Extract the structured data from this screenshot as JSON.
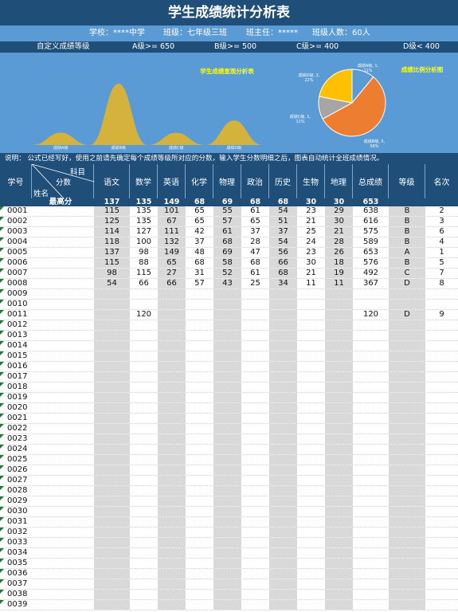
{
  "title": "学生成绩统计分析表",
  "info": {
    "school": "学校：****中学",
    "class": "班级：七年级三班",
    "teacher": "班主任：*****",
    "count": "班级人数：60人"
  },
  "grades": {
    "label": "自定义成绩等级",
    "a": "A级>= 650",
    "b": "B级>= 500",
    "c": "C级>= 400",
    "d": "D级< 400"
  },
  "chart_data": [
    {
      "type": "area",
      "title": "学生成绩直观分析表",
      "categories": [
        "成绩A级",
        "成绩B级",
        "成绩C级",
        "成绩D级"
      ],
      "values": [
        1,
        5,
        1,
        2
      ]
    },
    {
      "type": "pie",
      "title": "成绩比例分析图",
      "slices": [
        {
          "label": "成绩A级, 1, 11%",
          "value": 11,
          "color": "#5b9bd5"
        },
        {
          "label": "成绩B级, 5, 56%",
          "value": 56,
          "color": "#ed7d31"
        },
        {
          "label": "成绩C级, 1, 11%",
          "value": 11,
          "color": "#a5a5a5"
        },
        {
          "label": "成绩D级, 2, 22%",
          "value": 22,
          "color": "#ffc000"
        }
      ]
    }
  ],
  "note": "说明： 公式已经写好，使用之前请先确定每个成绩等级所对应的分数，输入学生分数明细之后，图表自动统计全班成绩情况。",
  "table": {
    "headers": {
      "id": "学号",
      "subject_label": "科目",
      "score_label": "分数",
      "name_label": "姓名",
      "chinese": "语文",
      "math": "数学",
      "english": "英语",
      "chemistry": "化学",
      "physics": "物理",
      "politics": "政治",
      "history": "历史",
      "biology": "生物",
      "geography": "地理",
      "total": "总成绩",
      "grade": "等级",
      "rank": "名次"
    },
    "max_row": {
      "label": "最高分",
      "values": [
        "137",
        "135",
        "149",
        "68",
        "69",
        "68",
        "68",
        "30",
        "30",
        "653"
      ]
    },
    "rows": [
      {
        "id": "0001",
        "scores": [
          "115",
          "135",
          "101",
          "65",
          "55",
          "61",
          "54",
          "23",
          "29"
        ],
        "total": "638",
        "grade": "B",
        "rank": "2"
      },
      {
        "id": "0002",
        "scores": [
          "125",
          "135",
          "67",
          "65",
          "57",
          "65",
          "51",
          "21",
          "30"
        ],
        "total": "616",
        "grade": "B",
        "rank": "3"
      },
      {
        "id": "0003",
        "scores": [
          "114",
          "127",
          "111",
          "42",
          "61",
          "37",
          "37",
          "25",
          "21"
        ],
        "total": "575",
        "grade": "B",
        "rank": "6"
      },
      {
        "id": "0004",
        "scores": [
          "118",
          "100",
          "132",
          "37",
          "68",
          "28",
          "54",
          "24",
          "28"
        ],
        "total": "589",
        "grade": "B",
        "rank": "4"
      },
      {
        "id": "0005",
        "scores": [
          "137",
          "98",
          "149",
          "48",
          "69",
          "47",
          "56",
          "23",
          "26"
        ],
        "total": "653",
        "grade": "A",
        "rank": "1"
      },
      {
        "id": "0006",
        "scores": [
          "115",
          "88",
          "65",
          "68",
          "58",
          "68",
          "66",
          "30",
          "18"
        ],
        "total": "576",
        "grade": "B",
        "rank": "5"
      },
      {
        "id": "0007",
        "scores": [
          "98",
          "115",
          "27",
          "31",
          "52",
          "61",
          "68",
          "21",
          "19"
        ],
        "total": "492",
        "grade": "C",
        "rank": "7"
      },
      {
        "id": "0008",
        "scores": [
          "54",
          "66",
          "66",
          "57",
          "43",
          "25",
          "34",
          "11",
          "11"
        ],
        "total": "367",
        "grade": "D",
        "rank": "8"
      },
      {
        "id": "0009",
        "scores": [
          "",
          "",
          "",
          "",
          "",
          "",
          "",
          "",
          ""
        ],
        "total": "",
        "grade": "",
        "rank": ""
      },
      {
        "id": "0010",
        "scores": [
          "",
          "",
          "",
          "",
          "",
          "",
          "",
          "",
          ""
        ],
        "total": "",
        "grade": "",
        "rank": ""
      },
      {
        "id": "0011",
        "scores": [
          "",
          "120",
          "",
          "",
          "",
          "",
          "",
          "",
          ""
        ],
        "total": "120",
        "grade": "D",
        "rank": "9"
      },
      {
        "id": "0012",
        "scores": [
          "",
          "",
          "",
          "",
          "",
          "",
          "",
          "",
          ""
        ],
        "total": "",
        "grade": "",
        "rank": ""
      },
      {
        "id": "0013",
        "scores": [
          "",
          "",
          "",
          "",
          "",
          "",
          "",
          "",
          ""
        ],
        "total": "",
        "grade": "",
        "rank": ""
      },
      {
        "id": "0014",
        "scores": [
          "",
          "",
          "",
          "",
          "",
          "",
          "",
          "",
          ""
        ],
        "total": "",
        "grade": "",
        "rank": ""
      },
      {
        "id": "0015",
        "scores": [
          "",
          "",
          "",
          "",
          "",
          "",
          "",
          "",
          ""
        ],
        "total": "",
        "grade": "",
        "rank": ""
      },
      {
        "id": "0016",
        "scores": [
          "",
          "",
          "",
          "",
          "",
          "",
          "",
          "",
          ""
        ],
        "total": "",
        "grade": "",
        "rank": ""
      },
      {
        "id": "0017",
        "scores": [
          "",
          "",
          "",
          "",
          "",
          "",
          "",
          "",
          ""
        ],
        "total": "",
        "grade": "",
        "rank": ""
      },
      {
        "id": "0018",
        "scores": [
          "",
          "",
          "",
          "",
          "",
          "",
          "",
          "",
          ""
        ],
        "total": "",
        "grade": "",
        "rank": ""
      },
      {
        "id": "0019",
        "scores": [
          "",
          "",
          "",
          "",
          "",
          "",
          "",
          "",
          ""
        ],
        "total": "",
        "grade": "",
        "rank": ""
      },
      {
        "id": "0020",
        "scores": [
          "",
          "",
          "",
          "",
          "",
          "",
          "",
          "",
          ""
        ],
        "total": "",
        "grade": "",
        "rank": ""
      },
      {
        "id": "0021",
        "scores": [
          "",
          "",
          "",
          "",
          "",
          "",
          "",
          "",
          ""
        ],
        "total": "",
        "grade": "",
        "rank": ""
      },
      {
        "id": "0022",
        "scores": [
          "",
          "",
          "",
          "",
          "",
          "",
          "",
          "",
          ""
        ],
        "total": "",
        "grade": "",
        "rank": ""
      },
      {
        "id": "0023",
        "scores": [
          "",
          "",
          "",
          "",
          "",
          "",
          "",
          "",
          ""
        ],
        "total": "",
        "grade": "",
        "rank": ""
      },
      {
        "id": "0024",
        "scores": [
          "",
          "",
          "",
          "",
          "",
          "",
          "",
          "",
          ""
        ],
        "total": "",
        "grade": "",
        "rank": ""
      },
      {
        "id": "0025",
        "scores": [
          "",
          "",
          "",
          "",
          "",
          "",
          "",
          "",
          ""
        ],
        "total": "",
        "grade": "",
        "rank": ""
      },
      {
        "id": "0026",
        "scores": [
          "",
          "",
          "",
          "",
          "",
          "",
          "",
          "",
          ""
        ],
        "total": "",
        "grade": "",
        "rank": ""
      },
      {
        "id": "0027",
        "scores": [
          "",
          "",
          "",
          "",
          "",
          "",
          "",
          "",
          ""
        ],
        "total": "",
        "grade": "",
        "rank": ""
      },
      {
        "id": "0028",
        "scores": [
          "",
          "",
          "",
          "",
          "",
          "",
          "",
          "",
          ""
        ],
        "total": "",
        "grade": "",
        "rank": ""
      },
      {
        "id": "0029",
        "scores": [
          "",
          "",
          "",
          "",
          "",
          "",
          "",
          "",
          ""
        ],
        "total": "",
        "grade": "",
        "rank": ""
      },
      {
        "id": "0030",
        "scores": [
          "",
          "",
          "",
          "",
          "",
          "",
          "",
          "",
          ""
        ],
        "total": "",
        "grade": "",
        "rank": ""
      },
      {
        "id": "0031",
        "scores": [
          "",
          "",
          "",
          "",
          "",
          "",
          "",
          "",
          ""
        ],
        "total": "",
        "grade": "",
        "rank": ""
      },
      {
        "id": "0032",
        "scores": [
          "",
          "",
          "",
          "",
          "",
          "",
          "",
          "",
          ""
        ],
        "total": "",
        "grade": "",
        "rank": ""
      },
      {
        "id": "0033",
        "scores": [
          "",
          "",
          "",
          "",
          "",
          "",
          "",
          "",
          ""
        ],
        "total": "",
        "grade": "",
        "rank": ""
      },
      {
        "id": "0034",
        "scores": [
          "",
          "",
          "",
          "",
          "",
          "",
          "",
          "",
          ""
        ],
        "total": "",
        "grade": "",
        "rank": ""
      },
      {
        "id": "0035",
        "scores": [
          "",
          "",
          "",
          "",
          "",
          "",
          "",
          "",
          ""
        ],
        "total": "",
        "grade": "",
        "rank": ""
      },
      {
        "id": "0036",
        "scores": [
          "",
          "",
          "",
          "",
          "",
          "",
          "",
          "",
          ""
        ],
        "total": "",
        "grade": "",
        "rank": ""
      },
      {
        "id": "0037",
        "scores": [
          "",
          "",
          "",
          "",
          "",
          "",
          "",
          "",
          ""
        ],
        "total": "",
        "grade": "",
        "rank": ""
      },
      {
        "id": "0038",
        "scores": [
          "",
          "",
          "",
          "",
          "",
          "",
          "",
          "",
          ""
        ],
        "total": "",
        "grade": "",
        "rank": ""
      },
      {
        "id": "0039",
        "scores": [
          "",
          "",
          "",
          "",
          "",
          "",
          "",
          "",
          ""
        ],
        "total": "",
        "grade": "",
        "rank": ""
      }
    ]
  },
  "colors": {
    "header_dark": "#1f4e79",
    "header_light": "#5b9bd5",
    "gray_column": "#d9d9d9",
    "area_fill": "#d4b23c",
    "chart_title": "#ffff00",
    "triangle": "#1e7b34"
  }
}
